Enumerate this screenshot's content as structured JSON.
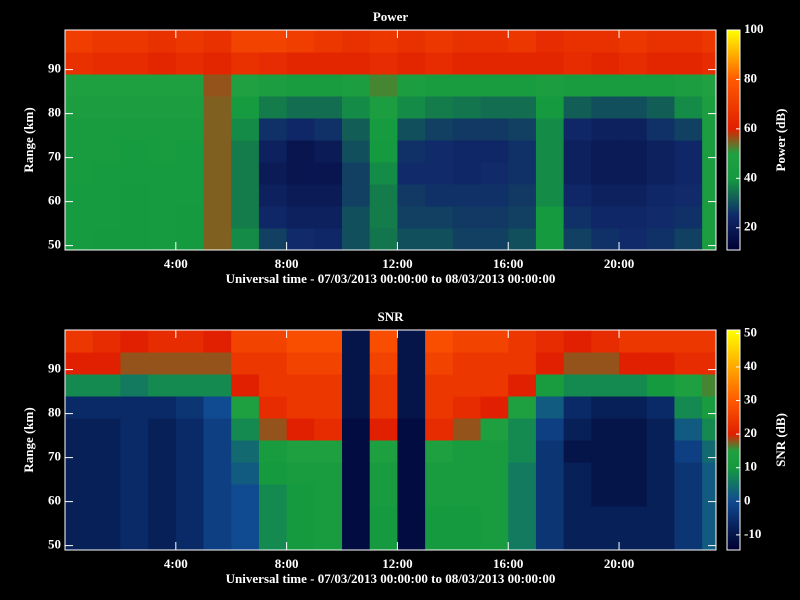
{
  "chart_data": [
    {
      "type": "heatmap",
      "title": "Power",
      "ylabel": "Range (km)",
      "xlabel": "Universal time - 07/03/2013 00:00:00 to 08/03/2013 00:00:00",
      "zlabel": "Power (dB)",
      "xlim": [
        0,
        23.5
      ],
      "ylim": [
        49,
        99
      ],
      "zlim": [
        11,
        100
      ],
      "xticks": [
        {
          "value": 4,
          "label": "4:00"
        },
        {
          "value": 8,
          "label": "8:00"
        },
        {
          "value": 12,
          "label": "12:00"
        },
        {
          "value": 16,
          "label": "16:00"
        },
        {
          "value": 20,
          "label": "20:00"
        }
      ],
      "yticks": [
        50,
        60,
        70,
        80,
        90
      ],
      "zticks": [
        20,
        40,
        60,
        80,
        100
      ],
      "colorscale": [
        [
          11,
          "#000033"
        ],
        [
          25,
          "#102a6a"
        ],
        [
          40,
          "#159a40"
        ],
        [
          50,
          "#20a040"
        ],
        [
          60,
          "#e02000"
        ],
        [
          80,
          "#ff5a00"
        ],
        [
          100,
          "#ffff00"
        ]
      ],
      "xbins": [
        0,
        1,
        2,
        3,
        4,
        5,
        6,
        7,
        8,
        9,
        10,
        11,
        12,
        13,
        14,
        15,
        16,
        17,
        18,
        19,
        20,
        21,
        22,
        23,
        23.5
      ],
      "ybins": [
        49,
        54,
        59,
        64,
        69,
        74,
        79,
        84,
        89,
        94,
        99
      ],
      "values": [
        [
          42,
          40,
          40,
          42,
          40,
          55,
          38,
          28,
          25,
          24,
          30,
          35,
          30,
          30,
          28,
          28,
          30,
          40,
          28,
          26,
          25,
          26,
          28,
          45
        ],
        [
          42,
          42,
          40,
          42,
          40,
          55,
          36,
          24,
          22,
          22,
          30,
          36,
          28,
          28,
          27,
          27,
          28,
          40,
          26,
          24,
          24,
          25,
          26,
          45
        ],
        [
          42,
          42,
          40,
          42,
          42,
          55,
          36,
          22,
          20,
          20,
          28,
          36,
          27,
          26,
          26,
          26,
          27,
          38,
          24,
          22,
          22,
          24,
          25,
          45
        ],
        [
          44,
          42,
          42,
          42,
          42,
          55,
          36,
          20,
          18,
          18,
          28,
          38,
          25,
          25,
          24,
          25,
          26,
          38,
          22,
          20,
          20,
          22,
          24,
          45
        ],
        [
          44,
          44,
          42,
          44,
          42,
          55,
          36,
          22,
          18,
          20,
          30,
          40,
          26,
          25,
          24,
          24,
          26,
          38,
          22,
          20,
          20,
          22,
          24,
          45
        ],
        [
          44,
          44,
          44,
          44,
          44,
          55,
          38,
          26,
          24,
          26,
          32,
          42,
          30,
          28,
          27,
          27,
          28,
          38,
          24,
          22,
          22,
          26,
          28,
          45
        ],
        [
          46,
          46,
          46,
          46,
          46,
          55,
          42,
          36,
          34,
          34,
          38,
          46,
          38,
          36,
          35,
          34,
          34,
          40,
          32,
          30,
          30,
          32,
          38,
          46
        ],
        [
          48,
          48,
          48,
          48,
          48,
          56,
          50,
          45,
          44,
          44,
          46,
          52,
          46,
          44,
          44,
          44,
          44,
          46,
          44,
          44,
          44,
          44,
          46,
          50
        ],
        [
          66,
          64,
          64,
          62,
          64,
          62,
          66,
          64,
          62,
          62,
          62,
          64,
          62,
          64,
          62,
          62,
          62,
          62,
          64,
          62,
          64,
          62,
          62,
          64
        ],
        [
          70,
          68,
          68,
          66,
          68,
          66,
          72,
          72,
          70,
          68,
          66,
          68,
          66,
          68,
          66,
          66,
          68,
          64,
          66,
          66,
          68,
          66,
          66,
          68
        ]
      ]
    },
    {
      "type": "heatmap",
      "title": "SNR",
      "ylabel": "Range (km)",
      "xlabel": "Universal time - 07/03/2013 00:00:00 to 08/03/2013 00:00:00",
      "zlabel": "SNR (dB)",
      "xlim": [
        0,
        23.5
      ],
      "ylim": [
        49,
        99
      ],
      "zlim": [
        -14.5,
        51
      ],
      "xticks": [
        {
          "value": 4,
          "label": "4:00"
        },
        {
          "value": 8,
          "label": "8:00"
        },
        {
          "value": 12,
          "label": "12:00"
        },
        {
          "value": 16,
          "label": "16:00"
        },
        {
          "value": 20,
          "label": "20:00"
        }
      ],
      "yticks": [
        50,
        60,
        70,
        80,
        90
      ],
      "zticks": [
        -10,
        0,
        10,
        20,
        30,
        40,
        50
      ],
      "colorscale": [
        [
          -14.5,
          "#000033"
        ],
        [
          -10,
          "#05154a"
        ],
        [
          0,
          "#104a90"
        ],
        [
          10,
          "#159a40"
        ],
        [
          15,
          "#20a040"
        ],
        [
          20,
          "#e02000"
        ],
        [
          30,
          "#ff5a00"
        ],
        [
          51,
          "#ffff00"
        ]
      ],
      "xbins": [
        0,
        1,
        2,
        3,
        4,
        5,
        6,
        7,
        8,
        9,
        10,
        11,
        12,
        13,
        14,
        15,
        16,
        17,
        18,
        19,
        20,
        21,
        22,
        23,
        23.5
      ],
      "ybins": [
        49,
        54,
        59,
        64,
        69,
        74,
        79,
        84,
        89,
        94,
        99
      ],
      "values": [
        [
          -8,
          -8,
          -6,
          -8,
          -6,
          -2,
          0,
          8,
          10,
          12,
          -12,
          10,
          -12,
          10,
          10,
          12,
          6,
          -4,
          -8,
          -8,
          -8,
          -8,
          -4,
          2
        ],
        [
          -8,
          -8,
          -6,
          -8,
          -6,
          -2,
          0,
          8,
          10,
          12,
          -12,
          10,
          -12,
          10,
          10,
          12,
          6,
          -4,
          -8,
          -8,
          -8,
          -8,
          -4,
          2
        ],
        [
          -8,
          -8,
          -6,
          -8,
          -6,
          -2,
          0,
          8,
          10,
          12,
          -12,
          12,
          -12,
          12,
          12,
          12,
          6,
          -4,
          -8,
          -10,
          -10,
          -8,
          -4,
          2
        ],
        [
          -8,
          -8,
          -6,
          -8,
          -6,
          -2,
          2,
          10,
          12,
          12,
          -12,
          12,
          -12,
          12,
          12,
          12,
          6,
          -4,
          -8,
          -10,
          -10,
          -8,
          -4,
          2
        ],
        [
          -8,
          -8,
          -6,
          -8,
          -6,
          -2,
          4,
          12,
          14,
          14,
          -12,
          14,
          -12,
          14,
          12,
          12,
          8,
          -4,
          -10,
          -10,
          -10,
          -8,
          -2,
          4
        ],
        [
          -8,
          -8,
          -6,
          -8,
          -6,
          -2,
          8,
          18,
          20,
          22,
          -12,
          20,
          -12,
          22,
          18,
          14,
          8,
          -2,
          -8,
          -10,
          -10,
          -8,
          2,
          8
        ],
        [
          -6,
          -6,
          -6,
          -6,
          -4,
          0,
          14,
          22,
          24,
          24,
          -10,
          24,
          -10,
          24,
          22,
          20,
          14,
          2,
          -6,
          -8,
          -8,
          -6,
          8,
          12
        ],
        [
          8,
          8,
          6,
          8,
          8,
          8,
          20,
          24,
          24,
          24,
          -10,
          24,
          -10,
          24,
          24,
          24,
          20,
          12,
          8,
          8,
          8,
          10,
          14,
          16
        ],
        [
          20,
          20,
          18,
          18,
          18,
          18,
          24,
          24,
          26,
          26,
          -10,
          26,
          -10,
          26,
          24,
          24,
          24,
          20,
          18,
          18,
          20,
          20,
          22,
          22
        ],
        [
          24,
          22,
          20,
          22,
          22,
          20,
          26,
          26,
          28,
          28,
          -10,
          28,
          -10,
          28,
          26,
          26,
          24,
          22,
          20,
          22,
          24,
          24,
          24,
          24
        ]
      ]
    }
  ]
}
